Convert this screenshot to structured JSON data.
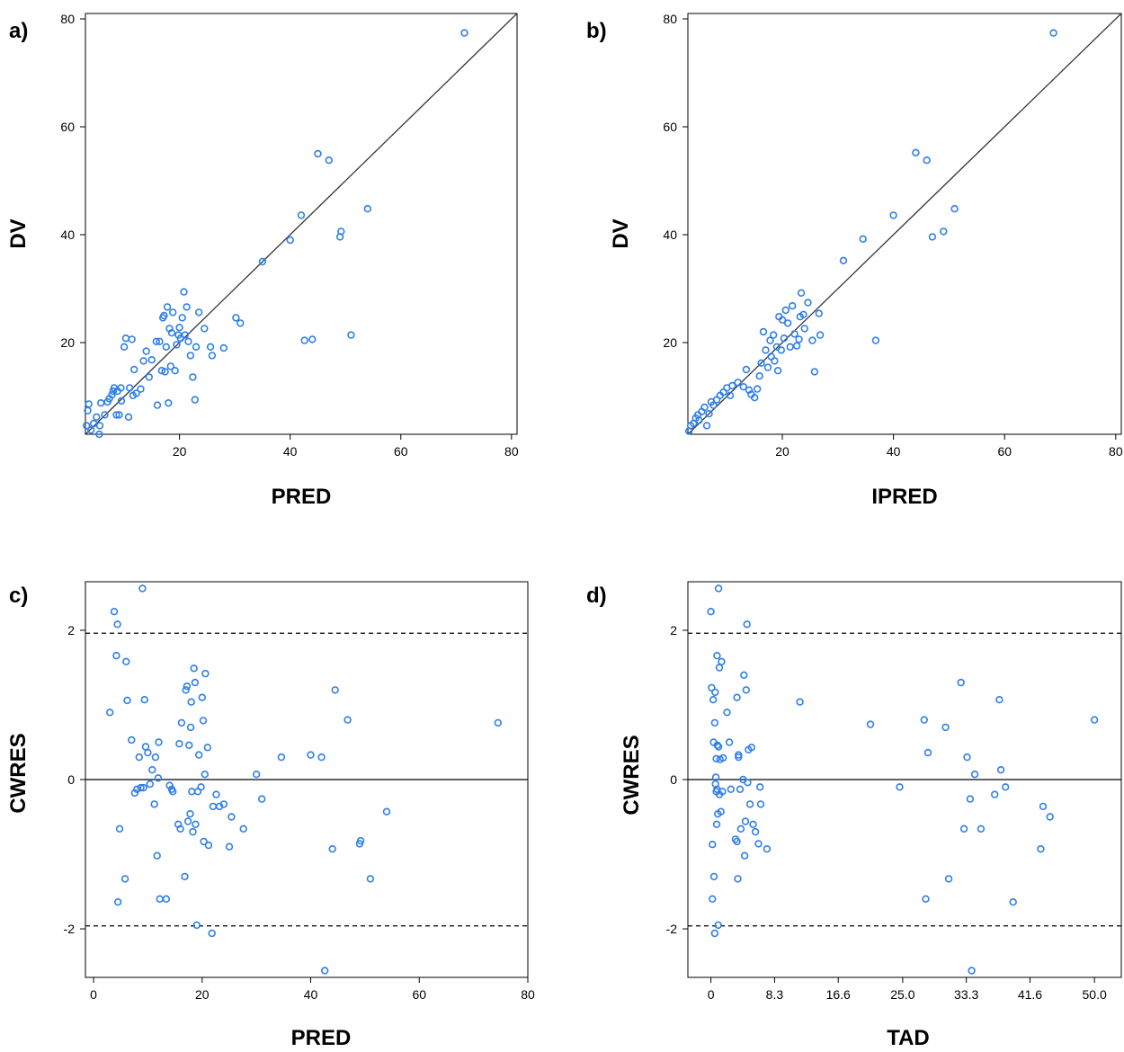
{
  "chart_data": [
    {
      "panel_label": "a)",
      "type": "scatter",
      "xlabel": "PRED",
      "ylabel": "DV",
      "xlim": [
        3,
        81
      ],
      "ylim": [
        3,
        81
      ],
      "xticks": [
        20,
        40,
        60,
        80
      ],
      "xtick_labels": [
        "20",
        "40",
        "60",
        "80"
      ],
      "yticks": [
        20,
        40,
        60,
        80
      ],
      "ytick_labels": [
        "20",
        "40",
        "60",
        "80"
      ],
      "reference_lines": [
        {
          "kind": "identity",
          "style": "solid"
        }
      ],
      "point_color": "#2f7fe8",
      "points": [
        [
          3.2,
          4.6
        ],
        [
          3.4,
          7.4
        ],
        [
          3.6,
          8.6
        ],
        [
          4.0,
          3.8
        ],
        [
          4.5,
          5.0
        ],
        [
          5.0,
          6.2
        ],
        [
          5.5,
          3.0
        ],
        [
          5.6,
          4.6
        ],
        [
          5.8,
          8.8
        ],
        [
          6.5,
          6.6
        ],
        [
          7.0,
          9.0
        ],
        [
          7.3,
          9.6
        ],
        [
          7.8,
          10.3
        ],
        [
          8.0,
          11.0
        ],
        [
          8.2,
          11.6
        ],
        [
          8.6,
          6.6
        ],
        [
          8.8,
          11.0
        ],
        [
          9.1,
          6.6
        ],
        [
          9.4,
          11.6
        ],
        [
          9.5,
          9.2
        ],
        [
          10.0,
          19.2
        ],
        [
          10.3,
          20.8
        ],
        [
          10.8,
          6.2
        ],
        [
          11.0,
          11.6
        ],
        [
          11.4,
          20.6
        ],
        [
          11.6,
          10.2
        ],
        [
          11.8,
          15.0
        ],
        [
          12.2,
          10.6
        ],
        [
          13.0,
          11.4
        ],
        [
          13.5,
          16.6
        ],
        [
          14.0,
          18.4
        ],
        [
          14.5,
          13.6
        ],
        [
          15.0,
          16.8
        ],
        [
          15.8,
          20.2
        ],
        [
          16.0,
          8.4
        ],
        [
          16.4,
          20.2
        ],
        [
          16.8,
          14.8
        ],
        [
          17.0,
          24.6
        ],
        [
          17.2,
          25.0
        ],
        [
          17.4,
          14.6
        ],
        [
          17.6,
          19.2
        ],
        [
          17.8,
          26.6
        ],
        [
          18.0,
          8.8
        ],
        [
          18.2,
          22.6
        ],
        [
          18.4,
          15.6
        ],
        [
          18.6,
          21.8
        ],
        [
          18.8,
          25.6
        ],
        [
          19.2,
          14.8
        ],
        [
          19.5,
          19.6
        ],
        [
          19.8,
          21.4
        ],
        [
          20.0,
          22.8
        ],
        [
          20.2,
          20.8
        ],
        [
          20.5,
          24.6
        ],
        [
          20.8,
          29.4
        ],
        [
          21.0,
          21.4
        ],
        [
          21.3,
          26.6
        ],
        [
          21.6,
          20.2
        ],
        [
          22.0,
          17.6
        ],
        [
          22.4,
          13.6
        ],
        [
          22.8,
          9.4
        ],
        [
          23.0,
          19.2
        ],
        [
          23.5,
          25.6
        ],
        [
          24.5,
          22.6
        ],
        [
          25.6,
          19.2
        ],
        [
          25.9,
          17.6
        ],
        [
          28.0,
          19.0
        ],
        [
          30.2,
          24.6
        ],
        [
          31.0,
          23.6
        ],
        [
          35.0,
          35.0
        ],
        [
          40.0,
          39.0
        ],
        [
          42.0,
          43.6
        ],
        [
          42.6,
          20.4
        ],
        [
          44.0,
          20.6
        ],
        [
          45.0,
          55.0
        ],
        [
          47.0,
          53.8
        ],
        [
          49.0,
          39.6
        ],
        [
          49.2,
          40.6
        ],
        [
          51.0,
          21.4
        ],
        [
          54.0,
          44.8
        ],
        [
          71.5,
          77.4
        ]
      ]
    },
    {
      "panel_label": "b)",
      "type": "scatter",
      "xlabel": "IPRED",
      "ylabel": "DV",
      "xlim": [
        3,
        81
      ],
      "ylim": [
        3,
        81
      ],
      "xticks": [
        20,
        40,
        60,
        80
      ],
      "xtick_labels": [
        "20",
        "40",
        "60",
        "80"
      ],
      "yticks": [
        20,
        40,
        60,
        80
      ],
      "ytick_labels": [
        "20",
        "40",
        "60",
        "80"
      ],
      "reference_lines": [
        {
          "kind": "identity",
          "style": "solid"
        }
      ],
      "point_color": "#2f7fe8",
      "points": [
        [
          3.2,
          3.6
        ],
        [
          3.5,
          4.6
        ],
        [
          4.0,
          5.0
        ],
        [
          4.4,
          6.0
        ],
        [
          4.8,
          6.6
        ],
        [
          5.0,
          5.6
        ],
        [
          5.5,
          7.2
        ],
        [
          6.0,
          8.0
        ],
        [
          6.4,
          4.6
        ],
        [
          6.8,
          6.8
        ],
        [
          7.2,
          9.0
        ],
        [
          7.6,
          8.4
        ],
        [
          8.2,
          9.4
        ],
        [
          8.8,
          10.2
        ],
        [
          9.4,
          10.8
        ],
        [
          10.0,
          11.6
        ],
        [
          10.6,
          10.2
        ],
        [
          11.0,
          12.0
        ],
        [
          12.0,
          12.6
        ],
        [
          13.0,
          11.8
        ],
        [
          13.5,
          15.0
        ],
        [
          14.0,
          11.2
        ],
        [
          14.4,
          10.4
        ],
        [
          15.0,
          9.8
        ],
        [
          15.5,
          11.4
        ],
        [
          15.9,
          13.8
        ],
        [
          16.2,
          16.2
        ],
        [
          16.6,
          22.0
        ],
        [
          17.0,
          18.6
        ],
        [
          17.4,
          15.4
        ],
        [
          17.8,
          20.4
        ],
        [
          18.0,
          17.4
        ],
        [
          18.4,
          21.4
        ],
        [
          18.6,
          16.6
        ],
        [
          19.0,
          19.2
        ],
        [
          19.2,
          14.8
        ],
        [
          19.4,
          24.8
        ],
        [
          19.8,
          18.6
        ],
        [
          20.0,
          24.2
        ],
        [
          20.3,
          20.8
        ],
        [
          20.6,
          26.0
        ],
        [
          21.0,
          23.6
        ],
        [
          21.4,
          19.2
        ],
        [
          21.8,
          26.8
        ],
        [
          22.2,
          21.6
        ],
        [
          22.6,
          19.4
        ],
        [
          23.0,
          20.6
        ],
        [
          23.2,
          24.8
        ],
        [
          23.4,
          29.2
        ],
        [
          23.8,
          25.2
        ],
        [
          24.0,
          22.6
        ],
        [
          24.6,
          27.4
        ],
        [
          25.4,
          20.4
        ],
        [
          25.8,
          14.6
        ],
        [
          26.6,
          25.4
        ],
        [
          26.8,
          21.4
        ],
        [
          31.0,
          35.2
        ],
        [
          34.5,
          39.2
        ],
        [
          36.8,
          20.4
        ],
        [
          40.0,
          43.6
        ],
        [
          44.0,
          55.2
        ],
        [
          46.0,
          53.8
        ],
        [
          47.0,
          39.6
        ],
        [
          49.0,
          40.6
        ],
        [
          51.0,
          44.8
        ],
        [
          68.8,
          77.4
        ]
      ]
    },
    {
      "panel_label": "c)",
      "type": "scatter",
      "xlabel": "PRED",
      "ylabel": "CWRES",
      "xlim": [
        -1.5,
        80
      ],
      "ylim": [
        -2.65,
        2.65
      ],
      "xticks": [
        0,
        20,
        40,
        60,
        80
      ],
      "xtick_labels": [
        "0",
        "20",
        "40",
        "60",
        "80"
      ],
      "yticks": [
        -2,
        0,
        2
      ],
      "ytick_labels": [
        "-2",
        "0",
        "2"
      ],
      "reference_lines": [
        {
          "kind": "horizontal",
          "y": 0,
          "style": "solid"
        },
        {
          "kind": "horizontal",
          "y": 1.96,
          "style": "dashed"
        },
        {
          "kind": "horizontal",
          "y": -1.96,
          "style": "dashed"
        }
      ],
      "point_color": "#2f7fe8",
      "points": [
        [
          3.0,
          0.9
        ],
        [
          3.8,
          2.25
        ],
        [
          4.2,
          1.66
        ],
        [
          4.4,
          2.08
        ],
        [
          4.5,
          -1.64
        ],
        [
          4.8,
          -0.66
        ],
        [
          5.8,
          -1.33
        ],
        [
          6.0,
          1.58
        ],
        [
          6.2,
          1.06
        ],
        [
          7.0,
          0.53
        ],
        [
          7.6,
          -0.18
        ],
        [
          8.0,
          -0.13
        ],
        [
          8.4,
          0.3
        ],
        [
          8.7,
          -0.11
        ],
        [
          9.0,
          2.56
        ],
        [
          9.2,
          -0.11
        ],
        [
          9.4,
          1.07
        ],
        [
          9.6,
          0.44
        ],
        [
          10.0,
          0.36
        ],
        [
          10.4,
          -0.06
        ],
        [
          10.8,
          0.13
        ],
        [
          11.2,
          -0.33
        ],
        [
          11.4,
          0.3
        ],
        [
          11.7,
          -1.02
        ],
        [
          11.9,
          0.02
        ],
        [
          12.0,
          0.5
        ],
        [
          12.2,
          -1.6
        ],
        [
          13.4,
          -1.6
        ],
        [
          14.0,
          -0.08
        ],
        [
          14.4,
          -0.13
        ],
        [
          14.6,
          -0.16
        ],
        [
          15.6,
          -0.6
        ],
        [
          15.8,
          0.48
        ],
        [
          16.0,
          -0.66
        ],
        [
          16.2,
          0.76
        ],
        [
          16.8,
          -1.3
        ],
        [
          17.0,
          1.2
        ],
        [
          17.2,
          1.25
        ],
        [
          17.4,
          -0.56
        ],
        [
          17.6,
          0.46
        ],
        [
          17.8,
          -0.46
        ],
        [
          17.9,
          0.7
        ],
        [
          18.0,
          1.04
        ],
        [
          18.1,
          -0.16
        ],
        [
          18.3,
          -0.7
        ],
        [
          18.5,
          1.49
        ],
        [
          18.7,
          1.3
        ],
        [
          18.8,
          -0.6
        ],
        [
          19.0,
          -1.95
        ],
        [
          19.2,
          -0.16
        ],
        [
          19.4,
          0.33
        ],
        [
          19.8,
          -0.1
        ],
        [
          20.0,
          1.1
        ],
        [
          20.2,
          0.79
        ],
        [
          20.3,
          -0.83
        ],
        [
          20.5,
          0.07
        ],
        [
          20.6,
          1.42
        ],
        [
          21.0,
          0.43
        ],
        [
          21.2,
          -0.88
        ],
        [
          21.8,
          -2.06
        ],
        [
          22.0,
          -0.36
        ],
        [
          22.6,
          -0.2
        ],
        [
          23.2,
          -0.36
        ],
        [
          24.0,
          -0.33
        ],
        [
          25.0,
          -0.9
        ],
        [
          25.4,
          -0.5
        ],
        [
          27.6,
          -0.66
        ],
        [
          30.0,
          0.07
        ],
        [
          31.0,
          -0.26
        ],
        [
          34.6,
          0.3
        ],
        [
          40.0,
          0.33
        ],
        [
          42.0,
          0.3
        ],
        [
          42.6,
          -2.56
        ],
        [
          44.0,
          -0.93
        ],
        [
          44.5,
          1.2
        ],
        [
          46.8,
          0.8
        ],
        [
          49.0,
          -0.86
        ],
        [
          49.2,
          -0.82
        ],
        [
          51.0,
          -1.33
        ],
        [
          54.0,
          -0.43
        ],
        [
          74.5,
          0.76
        ]
      ]
    },
    {
      "panel_label": "d)",
      "type": "scatter",
      "xlabel": "TAD",
      "ylabel": "CWRES",
      "xlim": [
        -3.0,
        53.5
      ],
      "ylim": [
        -2.65,
        2.65
      ],
      "xticks": [
        0,
        8.3,
        16.6,
        25.0,
        33.3,
        41.6,
        50.0
      ],
      "xtick_labels": [
        "0",
        "8.3",
        "16.6",
        "25.0",
        "33.3",
        "41.6",
        "50.0"
      ],
      "yticks": [
        -2,
        0,
        2
      ],
      "ytick_labels": [
        "-2",
        "0",
        "2"
      ],
      "reference_lines": [
        {
          "kind": "horizontal",
          "y": 0,
          "style": "solid"
        },
        {
          "kind": "horizontal",
          "y": 1.96,
          "style": "dashed"
        },
        {
          "kind": "horizontal",
          "y": -1.96,
          "style": "dashed"
        }
      ],
      "point_color": "#2f7fe8",
      "points": [
        [
          0.0,
          2.25
        ],
        [
          0.1,
          1.23
        ],
        [
          0.2,
          -0.87
        ],
        [
          0.2,
          -1.6
        ],
        [
          0.3,
          1.07
        ],
        [
          0.35,
          0.5
        ],
        [
          0.4,
          -1.3
        ],
        [
          0.5,
          0.76
        ],
        [
          0.5,
          -2.06
        ],
        [
          0.55,
          1.17
        ],
        [
          0.6,
          -0.06
        ],
        [
          0.65,
          0.03
        ],
        [
          0.7,
          0.28
        ],
        [
          0.7,
          -0.16
        ],
        [
          0.75,
          -0.6
        ],
        [
          0.8,
          1.66
        ],
        [
          0.8,
          -0.13
        ],
        [
          0.85,
          0.46
        ],
        [
          0.9,
          -0.46
        ],
        [
          0.95,
          -1.95
        ],
        [
          1.0,
          2.56
        ],
        [
          1.0,
          0.44
        ],
        [
          1.1,
          -0.2
        ],
        [
          1.1,
          1.5
        ],
        [
          1.2,
          0.27
        ],
        [
          1.3,
          -0.43
        ],
        [
          1.4,
          1.58
        ],
        [
          1.5,
          -0.16
        ],
        [
          1.6,
          0.29
        ],
        [
          2.1,
          0.9
        ],
        [
          2.4,
          0.5
        ],
        [
          2.6,
          -0.13
        ],
        [
          3.2,
          -0.8
        ],
        [
          3.4,
          1.1
        ],
        [
          3.4,
          -0.83
        ],
        [
          3.5,
          -1.33
        ],
        [
          3.6,
          0.33
        ],
        [
          3.6,
          0.3
        ],
        [
          3.8,
          -0.13
        ],
        [
          3.9,
          -0.66
        ],
        [
          4.2,
          0.0
        ],
        [
          4.3,
          1.4
        ],
        [
          4.4,
          -1.02
        ],
        [
          4.5,
          -0.56
        ],
        [
          4.6,
          1.2
        ],
        [
          4.7,
          2.08
        ],
        [
          4.8,
          -0.04
        ],
        [
          4.9,
          0.4
        ],
        [
          5.1,
          -0.33
        ],
        [
          5.3,
          0.43
        ],
        [
          5.5,
          -0.6
        ],
        [
          5.8,
          -0.7
        ],
        [
          6.2,
          -0.86
        ],
        [
          6.4,
          -0.1
        ],
        [
          6.5,
          -0.33
        ],
        [
          7.3,
          -0.93
        ],
        [
          11.6,
          1.04
        ],
        [
          20.8,
          0.74
        ],
        [
          24.6,
          -0.1
        ],
        [
          27.8,
          0.8
        ],
        [
          28.0,
          -1.6
        ],
        [
          28.3,
          0.36
        ],
        [
          30.6,
          0.7
        ],
        [
          31.0,
          -1.33
        ],
        [
          32.6,
          1.3
        ],
        [
          33.0,
          -0.66
        ],
        [
          33.4,
          0.3
        ],
        [
          33.8,
          -0.26
        ],
        [
          34.0,
          -2.56
        ],
        [
          34.4,
          0.07
        ],
        [
          35.2,
          -0.66
        ],
        [
          37.0,
          -0.2
        ],
        [
          37.6,
          1.07
        ],
        [
          37.8,
          0.13
        ],
        [
          38.4,
          -0.1
        ],
        [
          39.4,
          -1.64
        ],
        [
          43.0,
          -0.93
        ],
        [
          43.3,
          -0.36
        ],
        [
          44.2,
          -0.5
        ],
        [
          50.0,
          0.8
        ]
      ]
    }
  ]
}
